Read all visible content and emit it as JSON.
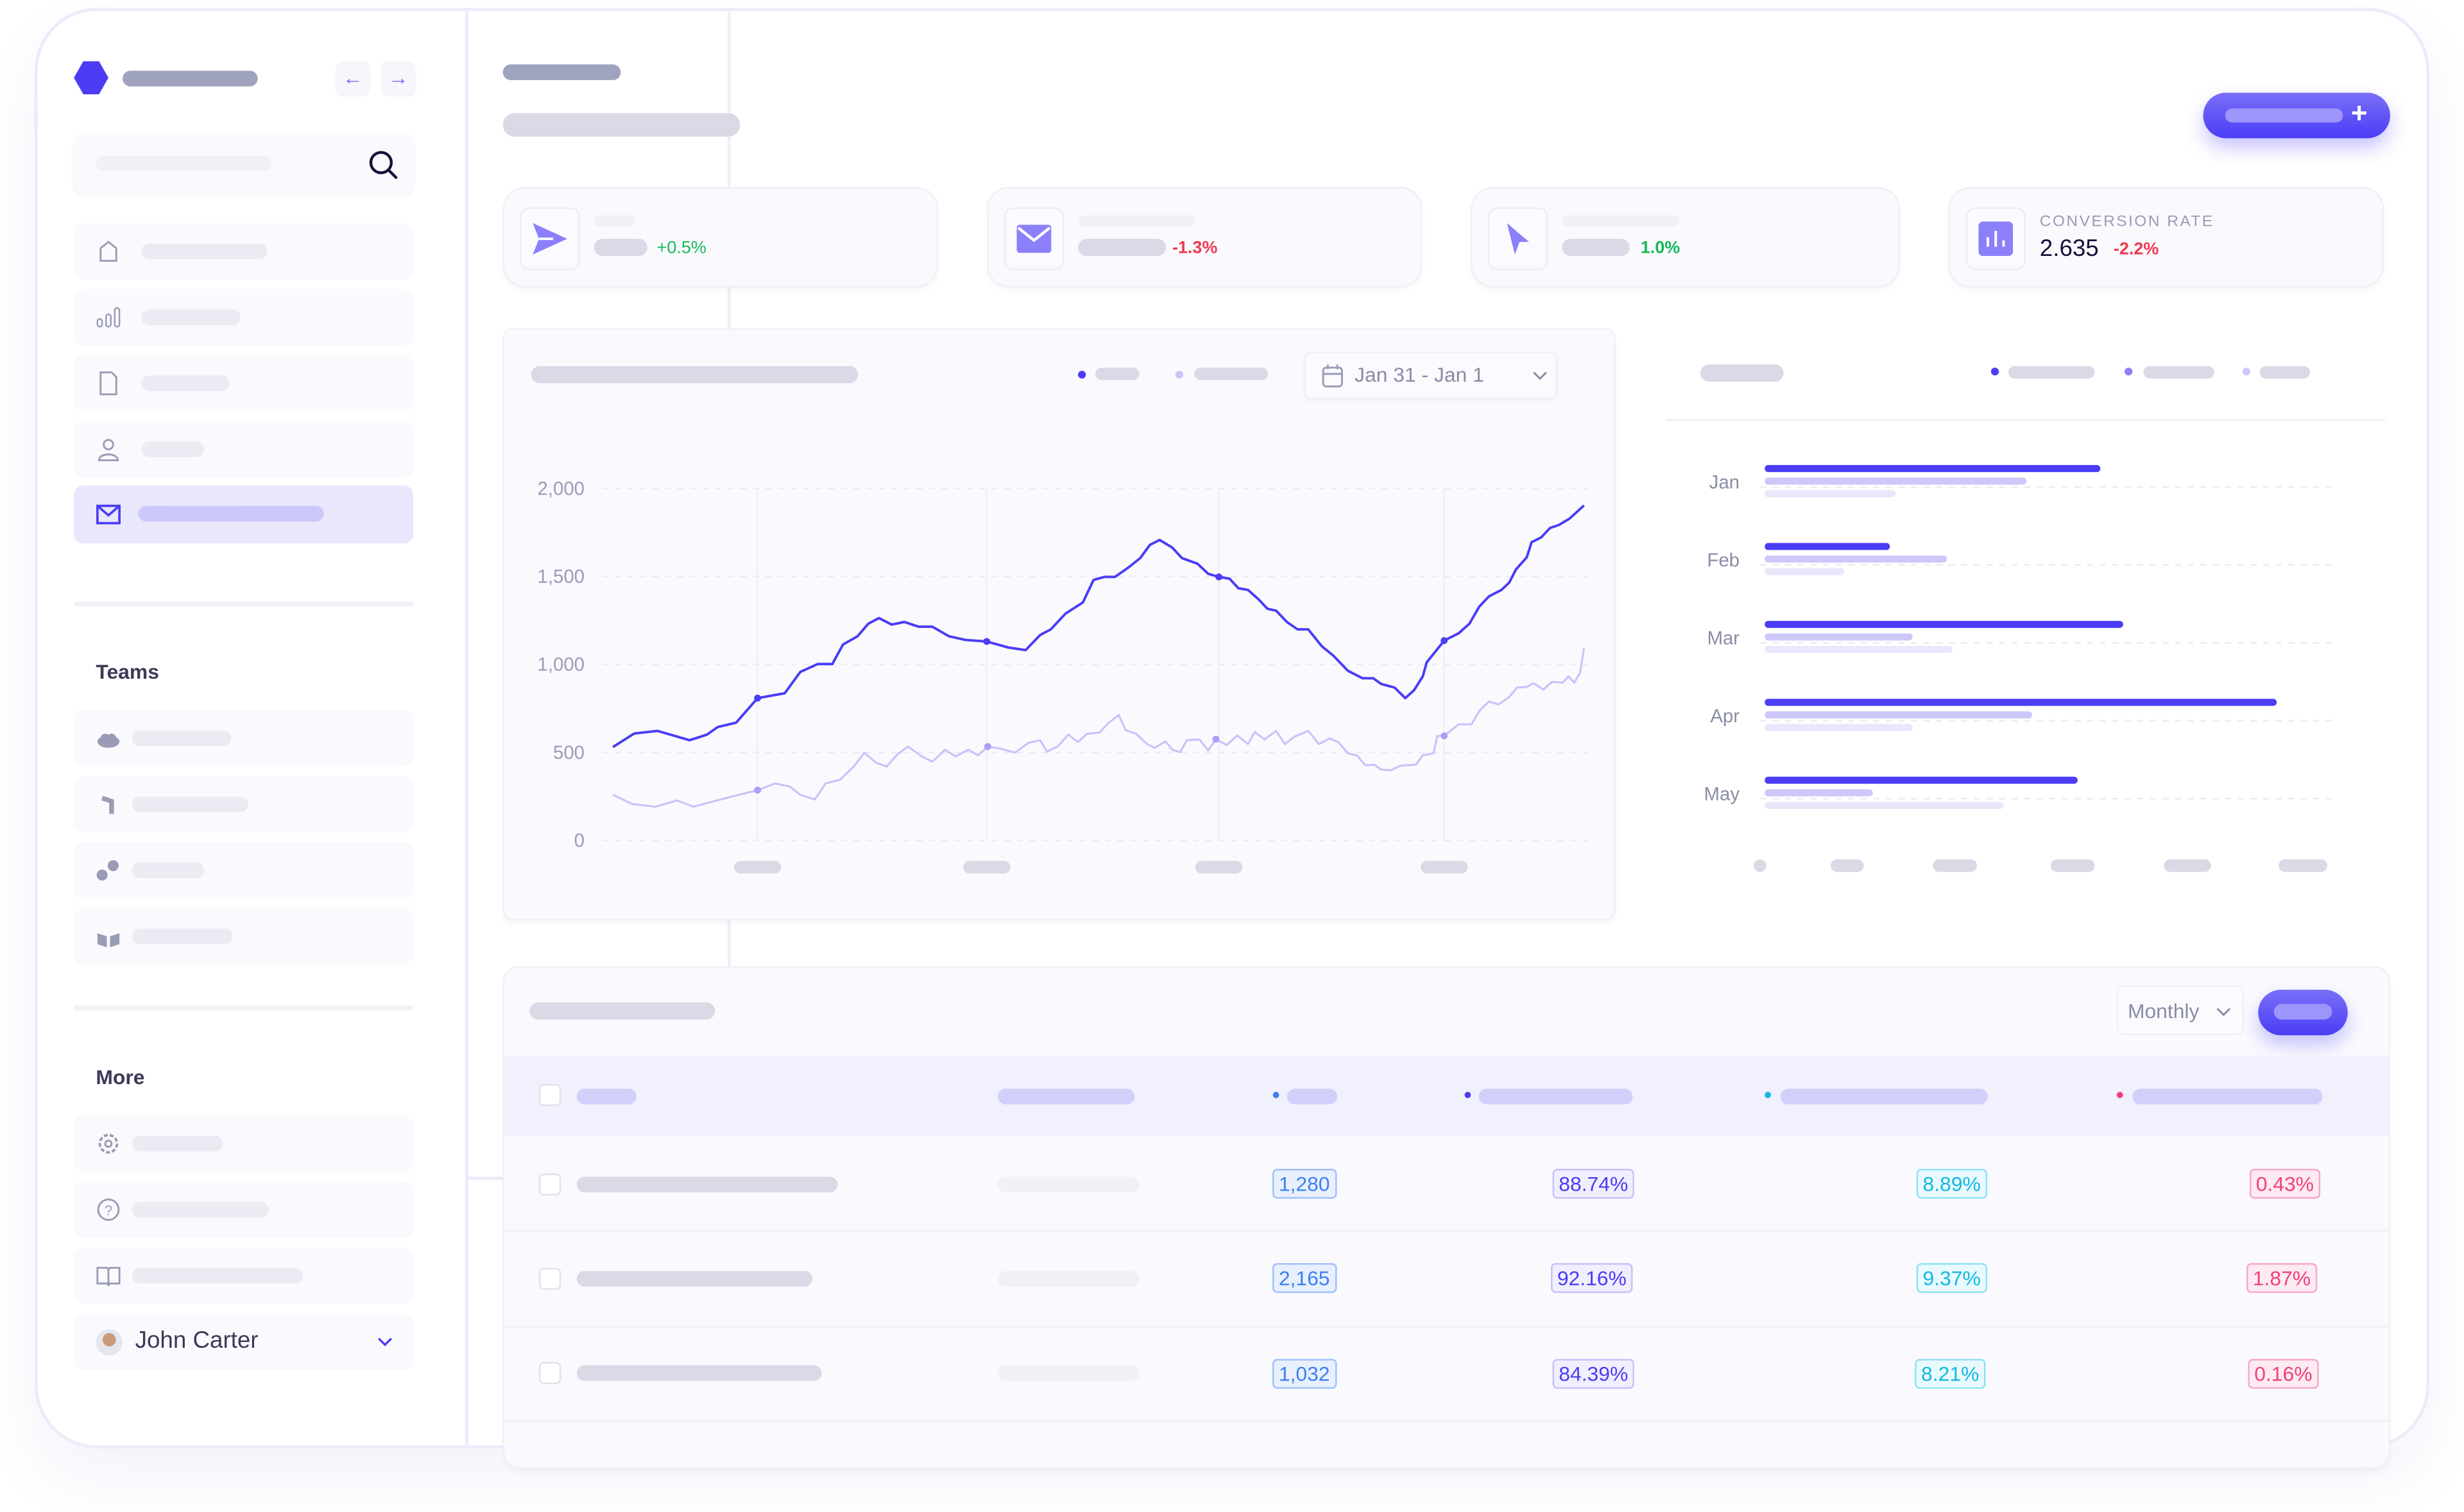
{
  "colors": {
    "accent": "#4a3df5",
    "accent_light": "#8b80f9",
    "accent_pale": "#cdc8fa",
    "positive": "#14b85a",
    "negative": "#f0384f"
  },
  "sidebar": {
    "icons": [
      "hexagon-logo-icon",
      "arrow-left-icon",
      "arrow-right-icon",
      "search-icon"
    ],
    "nav_icons": [
      "home-icon",
      "bar-chart-icon",
      "file-icon",
      "user-icon",
      "mail-icon"
    ],
    "active_index": 4,
    "teams_heading": "Teams",
    "team_icons": [
      "cloud-icon",
      "bracket-icon",
      "circles-icon",
      "cube-icon"
    ],
    "more_heading": "More",
    "more_icons": [
      "gear-icon",
      "help-icon",
      "book-icon"
    ],
    "user": {
      "name": "John Carter"
    }
  },
  "header": {
    "add_button_icon": "plus-icon"
  },
  "stats": [
    {
      "icon": "send-icon",
      "change": "+0.5%",
      "trend": "up"
    },
    {
      "icon": "mail-icon",
      "change": "-1.3%",
      "trend": "down"
    },
    {
      "icon": "cursor-icon",
      "change": "1.0%",
      "trend": "up"
    },
    {
      "icon": "chart-icon",
      "label": "CONVERSION RATE",
      "value": "2.635",
      "change": "-2.2%",
      "trend": "down"
    }
  ],
  "chart_data": [
    {
      "type": "line",
      "date_range": "Jan 31 - Jan 1",
      "ylim": [
        0,
        2000
      ],
      "yticks": [
        "0",
        "500",
        "1,000",
        "1,500",
        "2,000"
      ],
      "grid": true,
      "legend": "top-right",
      "x_unit": "percent of date range",
      "series": [
        {
          "color": "#4a3df5",
          "points": [
            [
              0,
              531
            ],
            [
              2.2,
              608
            ],
            [
              4.6,
              623
            ],
            [
              7.9,
              570
            ],
            [
              9.7,
              602
            ],
            [
              10.8,
              645
            ],
            [
              12.7,
              670
            ],
            [
              14.9,
              809
            ],
            [
              17.7,
              837
            ],
            [
              19.3,
              958
            ],
            [
              21.1,
              1003
            ],
            [
              22.6,
              1003
            ],
            [
              23.7,
              1114
            ],
            [
              25.2,
              1161
            ],
            [
              26.3,
              1232
            ],
            [
              27.4,
              1264
            ],
            [
              28.7,
              1227
            ],
            [
              30,
              1242
            ],
            [
              31.5,
              1215
            ],
            [
              32.9,
              1215
            ],
            [
              34.6,
              1161
            ],
            [
              36.3,
              1140
            ],
            [
              38.5,
              1131
            ],
            [
              40.7,
              1097
            ],
            [
              42.5,
              1082
            ],
            [
              44,
              1168
            ],
            [
              45.1,
              1200
            ],
            [
              46.6,
              1289
            ],
            [
              48.4,
              1353
            ],
            [
              49.5,
              1481
            ],
            [
              50.6,
              1498
            ],
            [
              51.7,
              1498
            ],
            [
              53.1,
              1552
            ],
            [
              54.3,
              1605
            ],
            [
              55.3,
              1680
            ],
            [
              56.3,
              1708
            ],
            [
              57.6,
              1665
            ],
            [
              58.6,
              1605
            ],
            [
              60.2,
              1573
            ],
            [
              61.3,
              1516
            ],
            [
              62.4,
              1498
            ],
            [
              63.5,
              1488
            ],
            [
              64.4,
              1434
            ],
            [
              65.4,
              1424
            ],
            [
              66.5,
              1370
            ],
            [
              67.4,
              1317
            ],
            [
              68.3,
              1306
            ],
            [
              69.4,
              1242
            ],
            [
              70.5,
              1200
            ],
            [
              71.6,
              1200
            ],
            [
              73,
              1104
            ],
            [
              74.2,
              1050
            ],
            [
              75.7,
              964
            ],
            [
              77.2,
              922
            ],
            [
              78.3,
              922
            ],
            [
              79.1,
              890
            ],
            [
              80.5,
              869
            ],
            [
              81.6,
              809
            ],
            [
              82.5,
              854
            ],
            [
              83.4,
              933
            ],
            [
              83.8,
              1012
            ],
            [
              85.6,
              1136
            ],
            [
              87.1,
              1178
            ],
            [
              88.2,
              1232
            ],
            [
              89.2,
              1328
            ],
            [
              90.2,
              1387
            ],
            [
              91.5,
              1424
            ],
            [
              92.3,
              1466
            ],
            [
              93,
              1541
            ],
            [
              94.1,
              1609
            ],
            [
              94.6,
              1695
            ],
            [
              95.6,
              1723
            ],
            [
              96.5,
              1776
            ],
            [
              97.4,
              1793
            ],
            [
              98.5,
              1829
            ],
            [
              100,
              1904
            ]
          ],
          "markers": [
            [
              14.9,
              809
            ],
            [
              38.5,
              1131
            ],
            [
              62.4,
              1498
            ],
            [
              85.6,
              1136
            ]
          ]
        },
        {
          "color": "#c9c3fa",
          "points": [
            [
              0,
              260
            ],
            [
              2,
              207
            ],
            [
              4.4,
              192
            ],
            [
              6.6,
              228
            ],
            [
              8.3,
              192
            ],
            [
              9.7,
              213
            ],
            [
              12.7,
              256
            ],
            [
              14.9,
              286
            ],
            [
              16.7,
              324
            ],
            [
              18.2,
              307
            ],
            [
              19.3,
              260
            ],
            [
              20.8,
              233
            ],
            [
              21.9,
              324
            ],
            [
              23.4,
              346
            ],
            [
              24.8,
              420
            ],
            [
              25.9,
              499
            ],
            [
              27.1,
              442
            ],
            [
              28.2,
              420
            ],
            [
              29.3,
              489
            ],
            [
              30.4,
              534
            ],
            [
              31.8,
              478
            ],
            [
              32.9,
              448
            ],
            [
              34.2,
              516
            ],
            [
              35.3,
              478
            ],
            [
              36.6,
              516
            ],
            [
              37.6,
              484
            ],
            [
              38.6,
              534
            ],
            [
              40,
              521
            ],
            [
              41.4,
              499
            ],
            [
              42.8,
              555
            ],
            [
              44,
              570
            ],
            [
              44.7,
              506
            ],
            [
              45.8,
              534
            ],
            [
              46.9,
              602
            ],
            [
              47.9,
              559
            ],
            [
              48.8,
              606
            ],
            [
              50.1,
              613
            ],
            [
              51,
              666
            ],
            [
              52.1,
              713
            ],
            [
              52.8,
              627
            ],
            [
              53.9,
              606
            ],
            [
              55,
              548
            ],
            [
              55.8,
              527
            ],
            [
              56.9,
              563
            ],
            [
              57.6,
              516
            ],
            [
              58.4,
              501
            ],
            [
              59.1,
              570
            ],
            [
              60.4,
              574
            ],
            [
              61.3,
              512
            ],
            [
              62.1,
              576
            ],
            [
              63.2,
              542
            ],
            [
              64.3,
              597
            ],
            [
              65.4,
              548
            ],
            [
              66.1,
              617
            ],
            [
              67.1,
              574
            ],
            [
              68.3,
              623
            ],
            [
              69.2,
              548
            ],
            [
              70.2,
              591
            ],
            [
              71.6,
              623
            ],
            [
              72.7,
              548
            ],
            [
              73.8,
              580
            ],
            [
              74.7,
              559
            ],
            [
              75.7,
              495
            ],
            [
              76.6,
              484
            ],
            [
              77.5,
              427
            ],
            [
              78.4,
              431
            ],
            [
              79.1,
              403
            ],
            [
              80.1,
              399
            ],
            [
              81.1,
              425
            ],
            [
              82.7,
              431
            ],
            [
              83.4,
              484
            ],
            [
              84.5,
              495
            ],
            [
              84.9,
              595
            ],
            [
              85.6,
              595
            ],
            [
              87.1,
              660
            ],
            [
              88.4,
              660
            ],
            [
              89.3,
              741
            ],
            [
              90.2,
              790
            ],
            [
              91.2,
              773
            ],
            [
              92.3,
              815
            ],
            [
              93.1,
              869
            ],
            [
              94.1,
              873
            ],
            [
              94.8,
              894
            ],
            [
              95.8,
              858
            ],
            [
              96.7,
              901
            ],
            [
              97.8,
              897
            ],
            [
              98.4,
              933
            ],
            [
              99,
              897
            ],
            [
              99.6,
              954
            ],
            [
              100,
              1093
            ]
          ],
          "markers": [
            [
              14.9,
              286
            ],
            [
              38.6,
              534
            ],
            [
              62.1,
              576
            ],
            [
              85.6,
              595
            ]
          ]
        }
      ]
    },
    {
      "type": "bar",
      "orientation": "horizontal",
      "categories": [
        "Jan",
        "Feb",
        "Mar",
        "Apr",
        "May"
      ],
      "value_unit": "relative (0-100)",
      "series": [
        {
          "color": "#4a3df5",
          "values": [
            59,
            22,
            63,
            90,
            55
          ]
        },
        {
          "color": "#cdc8fa",
          "values": [
            46,
            32,
            26,
            47,
            19
          ]
        },
        {
          "color": "#e9e7fc",
          "values": [
            23,
            14,
            33,
            26,
            42
          ]
        }
      ],
      "legend": "top-right"
    }
  ],
  "table": {
    "period": "Monthly",
    "header_dot_colors": [
      "#3f7ff0",
      "#4a3df5",
      "#13b8e0",
      "#f0407e"
    ],
    "rows": [
      {
        "c1": "1,280",
        "c2": "88.74%",
        "c3": "8.89%",
        "c4": "0.43%"
      },
      {
        "c1": "2,165",
        "c2": "92.16%",
        "c3": "9.37%",
        "c4": "1.87%"
      },
      {
        "c1": "1,032",
        "c2": "84.39%",
        "c3": "8.21%",
        "c4": "0.16%"
      }
    ]
  }
}
